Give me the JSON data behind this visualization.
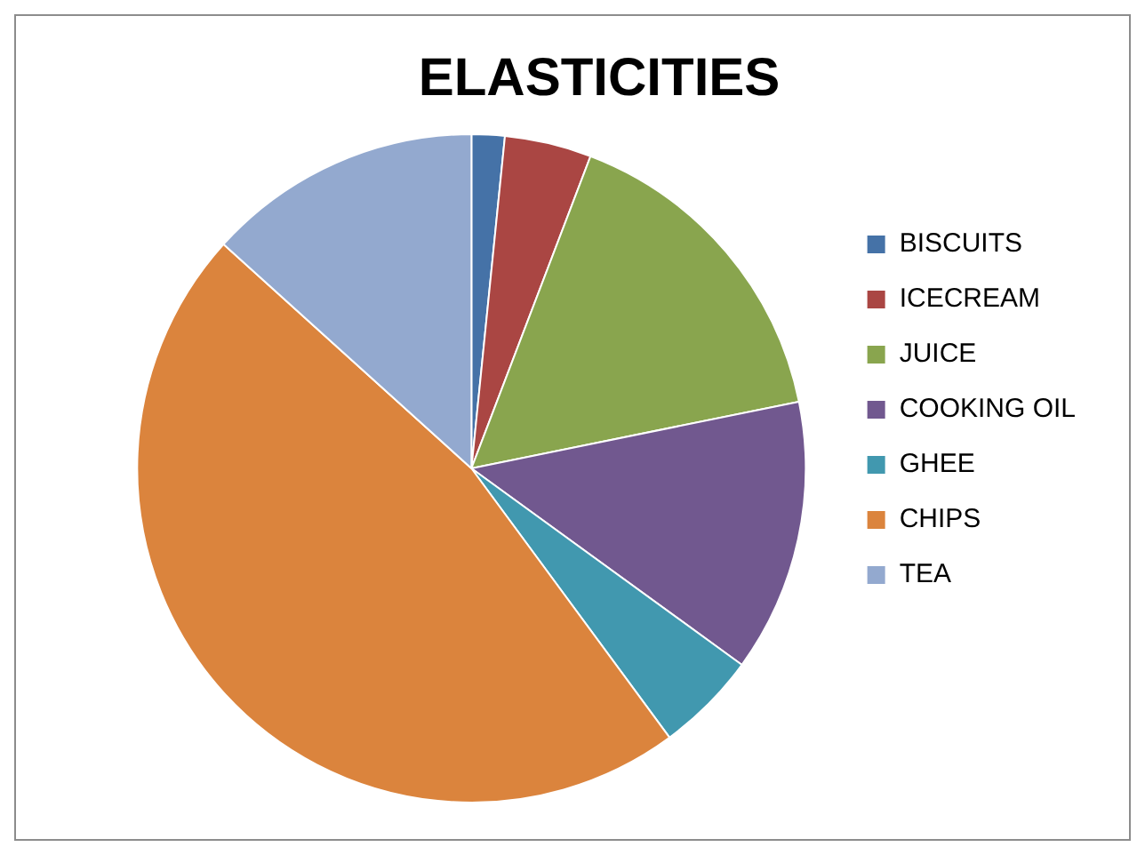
{
  "chart_data": {
    "type": "pie",
    "title": "ELASTICITIES",
    "categories": [
      "BISCUITS",
      "ICECREAM",
      "JUICE",
      "COOKING OIL",
      "GHEE",
      "CHIPS",
      "TEA"
    ],
    "values": [
      1.6,
      4.2,
      16,
      13.2,
      4.9,
      46.8,
      13.3
    ],
    "colors": [
      "#4572a7",
      "#aa4643",
      "#89a54e",
      "#71588f",
      "#4198af",
      "#db843d",
      "#93a9cf"
    ],
    "legend": "right"
  }
}
